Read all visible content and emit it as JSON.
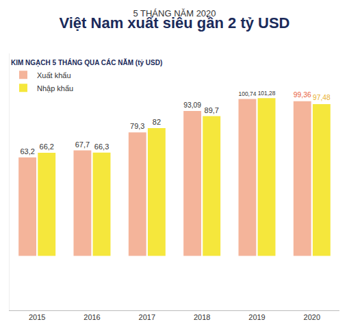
{
  "chart_data": {
    "type": "bar",
    "title": "5 THÁNG NĂM 2020",
    "subtitle": "Việt Nam xuất siêu gần 2 tỷ USD",
    "legend_title": "KIM NGẠCH 5 THÁNG QUA CÁC NĂM (tỷ USD)",
    "categories": [
      "2015",
      "2016",
      "2017",
      "2018",
      "2019",
      "2020"
    ],
    "series": [
      {
        "name": "Xuất khẩu",
        "color": "#f4b49a",
        "values": [
          63.2,
          67.7,
          79.3,
          93.09,
          100.74,
          99.36
        ],
        "value_labels": [
          "63,2",
          "67,7",
          "79,3",
          "93,09",
          "100,74",
          "99,36"
        ]
      },
      {
        "name": "Nhập khẩu",
        "color": "#f5e73c",
        "values": [
          66.2,
          66.3,
          82,
          89.7,
          101.28,
          97.48
        ],
        "value_labels": [
          "66,2",
          "66,3",
          "82",
          "89,7",
          "101,28",
          "97,48"
        ]
      }
    ],
    "ylim": [
      -35,
      130
    ],
    "yticks": [],
    "grid": false,
    "legend": "top left",
    "data_labels": true,
    "tick_labels": "x"
  }
}
